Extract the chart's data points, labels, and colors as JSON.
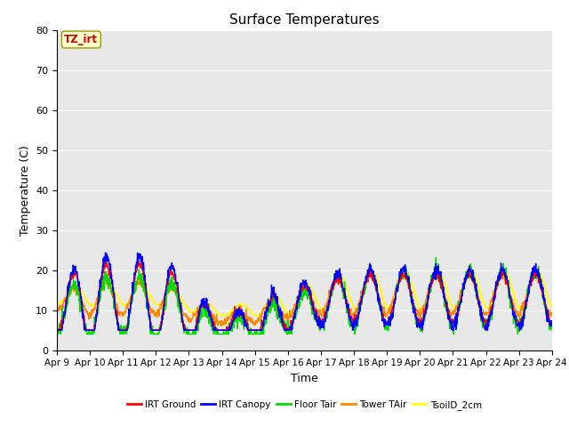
{
  "title": "Surface Temperatures",
  "xlabel": "Time",
  "ylabel": "Temperature (C)",
  "ylim": [
    0,
    80
  ],
  "yticks": [
    0,
    10,
    20,
    30,
    40,
    50,
    60,
    70,
    80
  ],
  "xtick_labels": [
    "Apr 9",
    "Apr 10",
    "Apr 11",
    "Apr 12",
    "Apr 13",
    "Apr 14",
    "Apr 15",
    "Apr 16",
    "Apr 17",
    "Apr 18",
    "Apr 19",
    "Apr 20",
    "Apr 21",
    "Apr 22",
    "Apr 23",
    "Apr 24"
  ],
  "series": {
    "IRT Ground": {
      "color": "#ff0000",
      "lw": 1.0
    },
    "IRT Canopy": {
      "color": "#0000ff",
      "lw": 1.0
    },
    "Floor Tair": {
      "color": "#00dd00",
      "lw": 1.0
    },
    "Tower TAir": {
      "color": "#ff8800",
      "lw": 1.0
    },
    "TsoilD_2cm": {
      "color": "#ffff00",
      "lw": 1.5
    }
  },
  "annotation_text": "TZ_irt",
  "annotation_bg": "#ffffcc",
  "annotation_fg": "#cc0000",
  "plot_bg": "#e8e8e8",
  "grid_color": "#ffffff",
  "title_fontsize": 11,
  "axis_label_fontsize": 9,
  "tick_fontsize": 8
}
